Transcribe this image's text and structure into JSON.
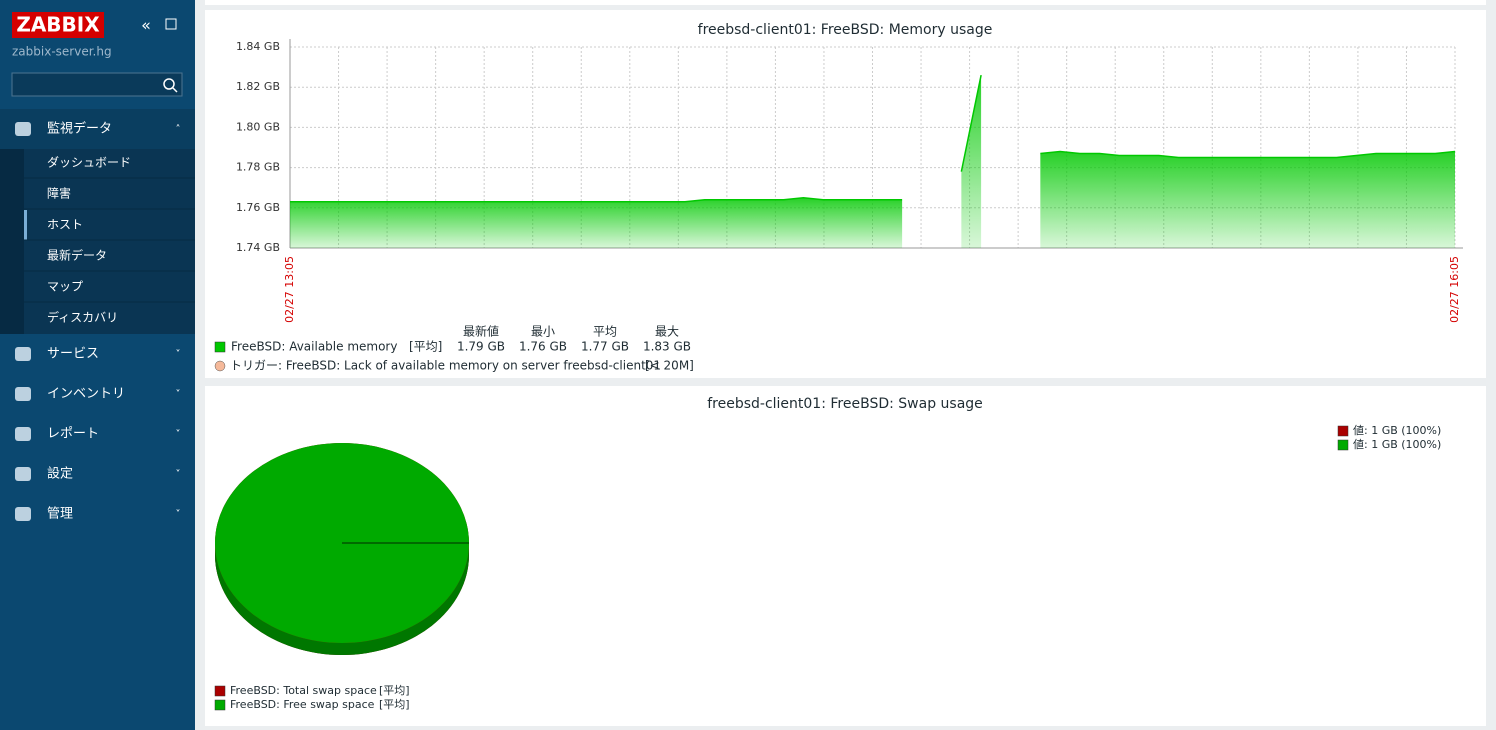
{
  "sidebar": {
    "logo": "ZABBIX",
    "server": "zabbix-server.hg",
    "menu": [
      {
        "label": "監視データ",
        "items": [
          "ダッシュボード",
          "障害",
          "ホスト",
          "最新データ",
          "マップ",
          "ディスカバリ"
        ]
      },
      {
        "label": "サービス"
      },
      {
        "label": "インベントリ"
      },
      {
        "label": "レポート"
      },
      {
        "label": "設定"
      },
      {
        "label": "管理"
      }
    ]
  },
  "chart_data": [
    {
      "type": "area",
      "title": "freebsd-client01: FreeBSD: Memory usage",
      "ylim": [
        1.74,
        1.84
      ],
      "yticks": [
        {
          "value": 1.74,
          "label": "1.74 GB"
        },
        {
          "value": 1.76,
          "label": "1.76 GB"
        },
        {
          "value": 1.78,
          "label": "1.78 GB"
        },
        {
          "value": 1.8,
          "label": "1.80 GB"
        },
        {
          "value": 1.82,
          "label": "1.82 GB"
        },
        {
          "value": 1.84,
          "label": "1.84 GB"
        }
      ],
      "xticks": [
        "02/27 13:05",
        "02/27 16:05"
      ],
      "grid": true,
      "stats_headers": [
        "最新値",
        "最小",
        "平均",
        "最大"
      ],
      "series": [
        {
          "name": "FreeBSD: Available memory",
          "color": "#00c800",
          "func": "[平均]",
          "stats": [
            "1.79 GB",
            "1.76 GB",
            "1.77 GB",
            "1.83 GB"
          ],
          "values": [
            1.763,
            1.763,
            1.763,
            1.763,
            1.763,
            1.763,
            1.763,
            1.763,
            1.763,
            1.763,
            1.763,
            1.763,
            1.763,
            1.763,
            1.763,
            1.763,
            1.763,
            1.763,
            1.763,
            1.763,
            1.763,
            1.764,
            1.764,
            1.764,
            1.764,
            1.764,
            1.765,
            1.764,
            1.764,
            1.764,
            1.764,
            1.764,
            null,
            null,
            1.778,
            1.826,
            null,
            null,
            1.787,
            1.788,
            1.787,
            1.787,
            1.786,
            1.786,
            1.786,
            1.785,
            1.785,
            1.785,
            1.785,
            1.785,
            1.785,
            1.785,
            1.785,
            1.785,
            1.786,
            1.787,
            1.787,
            1.787,
            1.787,
            1.788
          ]
        }
      ],
      "triggers": [
        {
          "name": "トリガー: FreeBSD: Lack of available memory on server freebsd-client01",
          "threshold": "[< 20M]",
          "color": "#f5b99a"
        }
      ]
    },
    {
      "type": "pie",
      "title": "freebsd-client01: FreeBSD: Swap usage",
      "series": [
        {
          "name": "FreeBSD: Total swap space",
          "color": "#aa0000",
          "func": "[平均]",
          "values": [
            100
          ],
          "value_labels": [
            "値: 1 GB (100%)"
          ]
        },
        {
          "name": "FreeBSD: Free swap space",
          "color": "#00aa00",
          "func": "[平均]",
          "values": [
            100
          ],
          "value_labels": [
            "値: 1 GB (100%)"
          ]
        }
      ]
    }
  ]
}
